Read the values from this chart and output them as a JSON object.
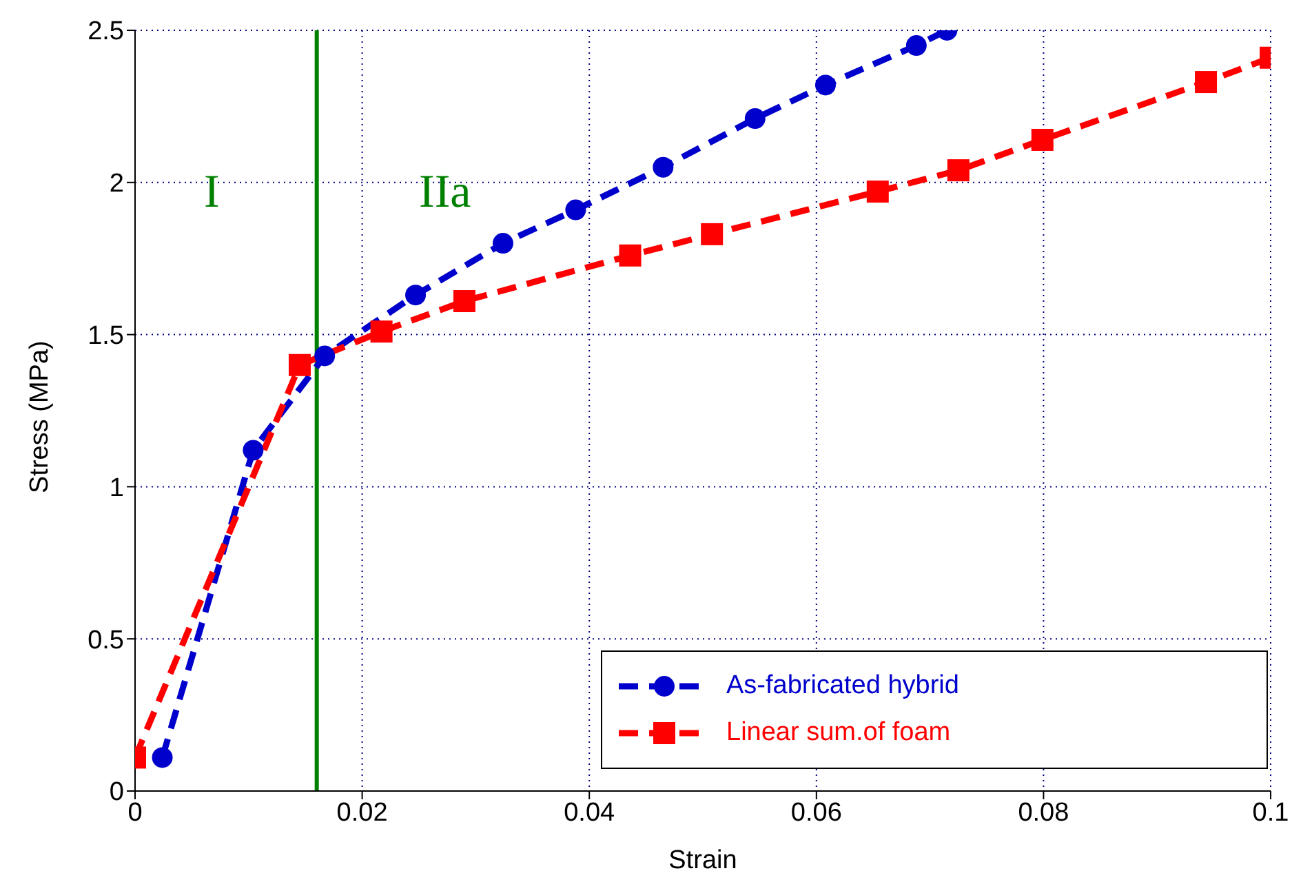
{
  "chart_data": {
    "type": "line",
    "xlabel": "Strain",
    "ylabel": "Stress (MPa)",
    "xlim": [
      0,
      0.1
    ],
    "xticks": [
      0,
      0.02,
      0.04,
      0.06,
      0.08,
      {
        "value": 0.1,
        "label": "0.1"
      }
    ],
    "ylim": [
      0,
      2.5
    ],
    "yticks": [
      0,
      0.5,
      1,
      1.5,
      2,
      2.5
    ],
    "grid": true,
    "legend": "bottom right",
    "line_style": "dashed",
    "series": [
      {
        "name": "As-fabricated hybrid",
        "color": "#0000cc",
        "marker": "circle",
        "x": [
          0.0024,
          0.0104,
          0.0167,
          0.0247,
          0.0324,
          0.0388,
          0.0465,
          0.0546,
          0.0608,
          0.0688,
          0.0715
        ],
        "values": [
          0.11,
          1.12,
          1.43,
          1.63,
          1.8,
          1.91,
          2.05,
          2.21,
          2.32,
          2.45,
          2.5
        ]
      },
      {
        "name": "Linear sum.of foam",
        "color": "#ff0000",
        "marker": "square",
        "x": [
          0,
          0.0145,
          0.0217,
          0.029,
          0.0436,
          0.0508,
          0.0654,
          0.0725,
          0.0799,
          0.0943,
          0.1
        ],
        "values": [
          0.11,
          1.4,
          1.51,
          1.61,
          1.76,
          1.83,
          1.97,
          2.04,
          2.14,
          2.33,
          2.41
        ]
      }
    ],
    "ref_lines": [
      {
        "axis": "x",
        "value": 0.016,
        "color": "#008000",
        "line_style": "solid"
      }
    ],
    "annotations": [
      "I",
      "IIa"
    ]
  }
}
